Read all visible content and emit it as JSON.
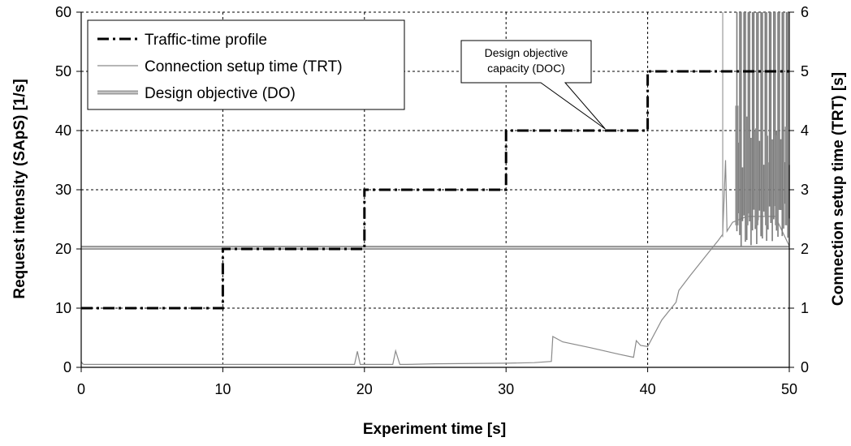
{
  "chart_data": {
    "type": "line",
    "xlabel": "Experiment time [s]",
    "ylabel": "Request intensity (SApS) [1/s]",
    "y2label": "Connection setup time (TRT) [s]",
    "xlim": [
      0,
      50
    ],
    "ylim": [
      0,
      60
    ],
    "y2lim": [
      0,
      6
    ],
    "x_ticks": [
      "0",
      "10",
      "20",
      "30",
      "40",
      "50"
    ],
    "y_ticks": [
      "0",
      "10",
      "20",
      "30",
      "40",
      "50",
      "60"
    ],
    "y2_ticks": [
      "0",
      "1",
      "2",
      "3",
      "4",
      "5",
      "6"
    ],
    "grid": true,
    "legend_position": "top-left",
    "series": [
      {
        "name": "Traffic-time profile",
        "axis": "left",
        "style": "dash-dot",
        "color": "#000000",
        "x": [
          0,
          10,
          10,
          20,
          20,
          30,
          30,
          40,
          40,
          50
        ],
        "y": [
          10,
          10,
          20,
          20,
          30,
          30,
          40,
          40,
          50,
          50
        ]
      },
      {
        "name": "Connection setup time (TRT)",
        "axis": "right",
        "style": "solid",
        "color": "#8a8a8a",
        "x": [
          0,
          0.1,
          0.2,
          19.3,
          19.5,
          19.7,
          22.0,
          22.2,
          22.5,
          23,
          25,
          30,
          32,
          33.2,
          33.3,
          34,
          36,
          38,
          39,
          39.2,
          39.5,
          40,
          41,
          42,
          42.2,
          43,
          44,
          45,
          45.3,
          45.5,
          45.6,
          46,
          47,
          48,
          49,
          50
        ],
        "y": [
          0.1,
          0.06,
          0.05,
          0.05,
          0.27,
          0.05,
          0.05,
          0.28,
          0.05,
          0.05,
          0.06,
          0.07,
          0.08,
          0.1,
          0.52,
          0.43,
          0.33,
          0.22,
          0.17,
          0.45,
          0.37,
          0.35,
          0.8,
          1.1,
          1.3,
          1.55,
          1.85,
          2.15,
          2.25,
          3.5,
          2.3,
          2.45,
          2.55,
          2.55,
          2.55,
          2.05
        ]
      },
      {
        "name": "Design objective (DO)",
        "axis": "left",
        "style": "band",
        "color": "#9a9a9a",
        "x": [
          0,
          50
        ],
        "y": [
          20.2,
          20.2
        ]
      }
    ],
    "spikes": {
      "axis": "right",
      "color": "#7a7a7a",
      "x_from": 46.3,
      "x_to": 50,
      "count": 38,
      "top": 6
    },
    "annotations": [
      {
        "lines": [
          "Design objective",
          "capacity (DOC)"
        ],
        "target": [
          37,
          40
        ]
      }
    ]
  }
}
